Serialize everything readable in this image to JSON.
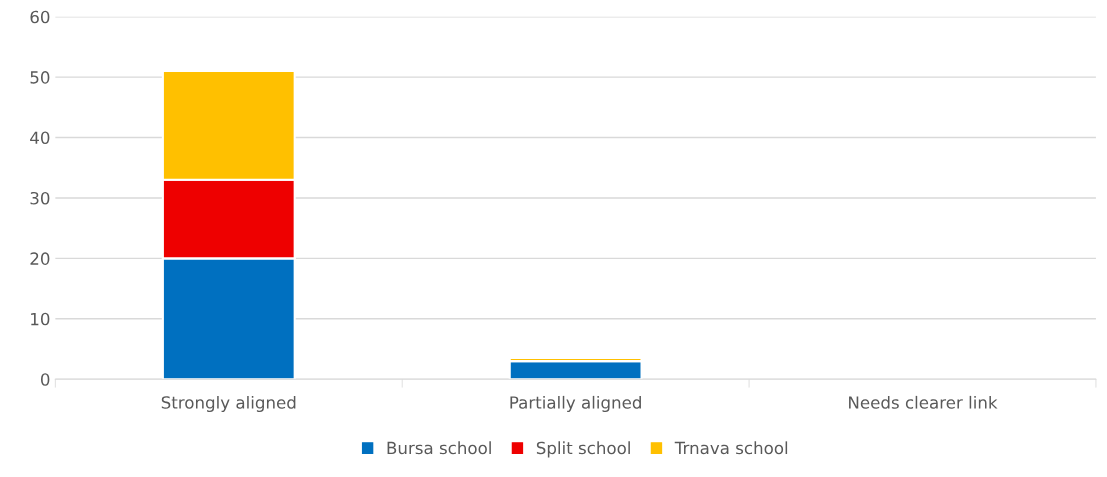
{
  "chart_data": {
    "type": "bar",
    "stacked": true,
    "categories": [
      "Strongly aligned",
      "Partially aligned",
      "Needs clearer link"
    ],
    "series": [
      {
        "name": "Bursa school",
        "color": "#0070c0",
        "values": [
          20,
          3,
          null
        ]
      },
      {
        "name": "Split school",
        "color": "#ee0000",
        "values": [
          13,
          null,
          null
        ]
      },
      {
        "name": "Trnava school",
        "color": "#ffc000",
        "values": [
          18,
          0.5,
          null
        ]
      }
    ],
    "ylim": [
      0,
      60
    ],
    "yticks": [
      0,
      10,
      20,
      30,
      40,
      50,
      60
    ],
    "grid": "y",
    "legend": "bottom"
  }
}
